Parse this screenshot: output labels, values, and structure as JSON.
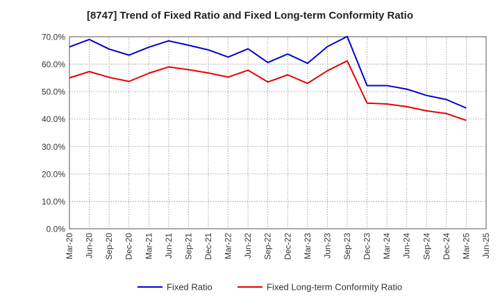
{
  "chart_data": {
    "type": "line",
    "title": "[8747]  Trend of Fixed Ratio and Fixed Long-term Conformity Ratio",
    "x": [
      "Mar-20",
      "Jun-20",
      "Sep-20",
      "Dec-20",
      "Mar-21",
      "Jun-21",
      "Sep-21",
      "Dec-21",
      "Mar-22",
      "Jun-22",
      "Sep-22",
      "Dec-22",
      "Mar-23",
      "Jun-23",
      "Sep-23",
      "Dec-23",
      "Mar-24",
      "Jun-24",
      "Sep-24",
      "Dec-24",
      "Mar-25",
      "Jun-25"
    ],
    "ylim": [
      0,
      70
    ],
    "yticks": [
      0,
      10,
      20,
      30,
      40,
      50,
      60,
      70
    ],
    "ytick_labels": [
      "0.0%",
      "10.0%",
      "20.0%",
      "30.0%",
      "40.0%",
      "50.0%",
      "60.0%",
      "70.0%"
    ],
    "grid": true,
    "legend_position": "bottom",
    "series": [
      {
        "name": "Fixed Ratio",
        "color": "#0000cc",
        "values": [
          66.3,
          69.0,
          65.5,
          63.3,
          66.2,
          68.5,
          66.9,
          65.2,
          62.6,
          65.6,
          60.6,
          63.7,
          60.3,
          66.4,
          70.1,
          52.2,
          52.2,
          50.9,
          48.6,
          47.1,
          44.0,
          null
        ]
      },
      {
        "name": "Fixed Long-term Conformity Ratio",
        "color": "#e60000",
        "values": [
          55.0,
          57.3,
          55.2,
          53.7,
          56.7,
          59.0,
          58.0,
          56.8,
          55.3,
          57.8,
          53.5,
          56.1,
          53.0,
          57.6,
          61.2,
          45.8,
          45.5,
          44.5,
          43.0,
          42.0,
          39.5,
          null
        ]
      }
    ]
  }
}
